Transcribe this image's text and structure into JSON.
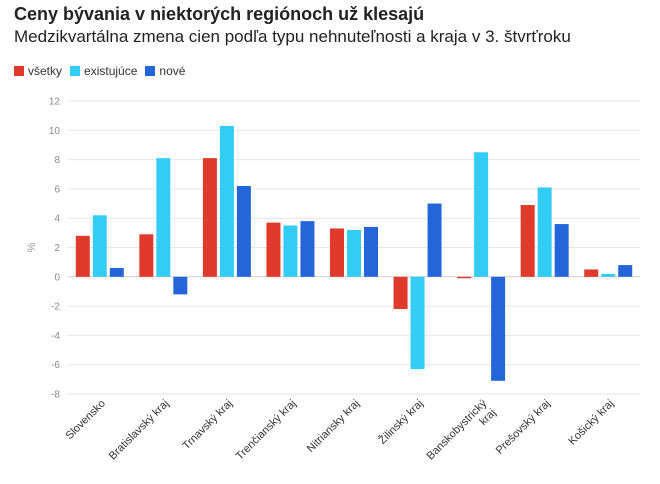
{
  "header": {
    "title": "Ceny bývania v niektorých regiónoch už klesajú",
    "subtitle": "Medzikvartálna zmena cien podľa typu nehnuteľnosti a kraja v 3. štvrťroku"
  },
  "chart_data": {
    "type": "bar",
    "title": "Ceny bývania v niektorých regiónoch už klesajú",
    "subtitle": "Medzikvartálna zmena cien podľa typu nehnuteľnosti a kraja v 3. štvrťroku",
    "xlabel": "",
    "ylabel": "%",
    "ylim": [
      -8,
      12
    ],
    "yticks": [
      12,
      10,
      8,
      6,
      4,
      2,
      0,
      -2,
      -4,
      -6,
      -8
    ],
    "grid": true,
    "legend_position": "top-left",
    "categories": [
      [
        "Slovensko"
      ],
      [
        "Bratislavský kraj"
      ],
      [
        "Trnavský kraj"
      ],
      [
        "Trenčianský kraj"
      ],
      [
        "Nitriansky kraj"
      ],
      [
        "Žilinský kraj"
      ],
      [
        "Banskobystrický",
        "kraj"
      ],
      [
        "Prešovský kraj"
      ],
      [
        "Košický kraj"
      ]
    ],
    "series": [
      {
        "name": "všetky",
        "color": "#e03a2c",
        "values": [
          2.8,
          2.9,
          8.1,
          3.7,
          3.3,
          -2.2,
          -0.1,
          4.9,
          0.5
        ]
      },
      {
        "name": "existujúce",
        "color": "#33ccf5",
        "values": [
          4.2,
          8.1,
          10.3,
          3.5,
          3.2,
          -6.3,
          8.5,
          6.1,
          0.2
        ]
      },
      {
        "name": "nové",
        "color": "#2466d9",
        "values": [
          0.6,
          -1.2,
          6.2,
          3.8,
          3.4,
          5.0,
          -7.1,
          3.6,
          0.8
        ]
      }
    ]
  }
}
